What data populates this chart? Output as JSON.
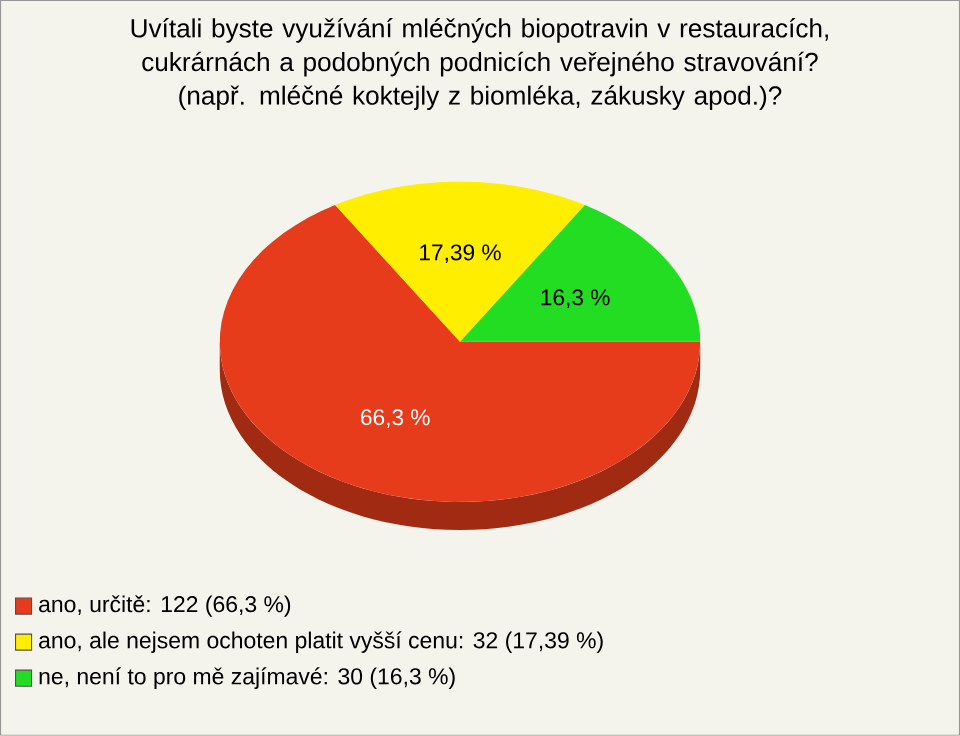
{
  "chart_data": {
    "type": "pie",
    "title": "Uvítali byste využívání mléčných biopotravin v restauracích, cukrárnách a podobných podnicích veřejného stravování? (např. mléčné koktejly z biomléka, zákusky apod.)?",
    "categories": [
      "ano, určitě: 122 (66,3 %)",
      "ano, ale nejsem ochoten platit vyšší cenu: 32 (17,39 %)",
      "ne, není to pro mě zajímavé: 30 (16,3 %)"
    ],
    "values": [
      66.3,
      17.39,
      16.3
    ],
    "value_labels": [
      "66,3 %",
      "17,39 %",
      "16,3 %"
    ],
    "colors": [
      "#e63c1c",
      "#ffee00",
      "#22dd22"
    ],
    "legend": "bottom left"
  }
}
